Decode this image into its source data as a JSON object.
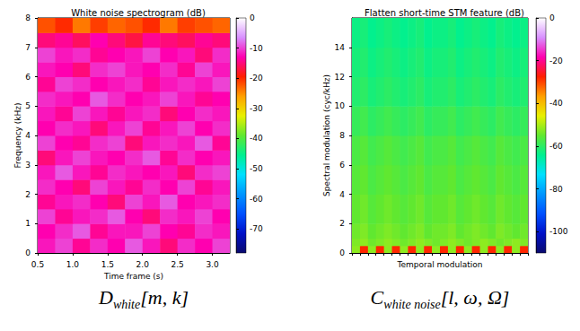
{
  "chart_data": [
    {
      "type": "heatmap",
      "title": "White noise spectrogram (dB)",
      "x_label": "Time frame (s)",
      "y_label": "Frequency (kHz)",
      "xlim": [
        0.5,
        3.25
      ],
      "xticks": [
        0.5,
        {
          "value": 1,
          "label": "1.0"
        },
        1.5,
        {
          "value": 2,
          "label": "2.0"
        },
        2.5,
        {
          "value": 3,
          "label": "3.0"
        }
      ],
      "ylim": [
        0,
        8
      ],
      "yticks": [
        0,
        1,
        2,
        3,
        4,
        5,
        6,
        7,
        8
      ],
      "x_edges": [
        0.5,
        0.75,
        1,
        1.25,
        1.5,
        1.75,
        2,
        2.25,
        2.5,
        2.75,
        3,
        3.25
      ],
      "y_edges": [
        0,
        0.5,
        1,
        1.5,
        2,
        2.5,
        3,
        3.5,
        4,
        4.5,
        5,
        5.5,
        6,
        6.5,
        7,
        7.5,
        8
      ],
      "cells": [
        [
          -12,
          -10,
          -14,
          -11,
          -13,
          -9,
          -12,
          -15,
          -11,
          -13,
          -10
        ],
        [
          -13,
          -11,
          -9,
          -14,
          -12,
          -12,
          -10,
          -13,
          -14,
          -11,
          -12
        ],
        [
          -10,
          -14,
          -12,
          -11,
          -9,
          -13,
          -15,
          -11,
          -12,
          -10,
          -13
        ],
        [
          -14,
          -12,
          -11,
          -13,
          -15,
          -10,
          -12,
          -9,
          -13,
          -12,
          -11
        ],
        [
          -11,
          -13,
          -15,
          -10,
          -12,
          -14,
          -11,
          -13,
          -10,
          -14,
          -12
        ],
        [
          -12,
          -9,
          -12,
          -14,
          -11,
          -12,
          -13,
          -12,
          -15,
          -11,
          -10
        ],
        [
          -15,
          -12,
          -10,
          -12,
          -13,
          -11,
          -9,
          -14,
          -11,
          -13,
          -12
        ],
        [
          -10,
          -13,
          -14,
          -11,
          -10,
          -15,
          -12,
          -11,
          -12,
          -9,
          -14
        ],
        [
          -13,
          -11,
          -12,
          -15,
          -12,
          -10,
          -14,
          -12,
          -10,
          -13,
          -11
        ],
        [
          -12,
          -14,
          -10,
          -12,
          -14,
          -12,
          -11,
          -15,
          -13,
          -11,
          -12
        ],
        [
          -11,
          -12,
          -13,
          -9,
          -11,
          -13,
          -12,
          -10,
          -12,
          -14,
          -13
        ],
        [
          -14,
          -10,
          -11,
          -13,
          -12,
          -11,
          -14,
          -12,
          -11,
          -12,
          -10
        ],
        [
          -12,
          -13,
          -15,
          -11,
          -10,
          -12,
          -13,
          -11,
          -14,
          -10,
          -12
        ],
        [
          -10,
          -12,
          -11,
          -14,
          -13,
          -12,
          -10,
          -13,
          -12,
          -15,
          -11
        ],
        [
          -15,
          -14,
          -16,
          -13,
          -15,
          -17,
          -14,
          -15,
          -16,
          -14,
          -15
        ],
        [
          -22,
          -20,
          -24,
          -21,
          -23,
          -22,
          -20,
          -24,
          -21,
          -22,
          -23
        ]
      ],
      "colorbar": {
        "range": [
          -78,
          0
        ],
        "ticks": [
          -70,
          -60,
          -50,
          -40,
          -30,
          -20,
          -10,
          0
        ]
      },
      "caption": {
        "symbol": "D",
        "subscript": "white",
        "arguments": "[m, k]"
      }
    },
    {
      "type": "heatmap",
      "title": "Flatten short-time STM feature (dB)",
      "x_label": "Temporal modulation",
      "y_label": "Spectral modulation (cyc/kHz)",
      "tick_labels": "y",
      "categories": [
        null,
        null,
        null,
        null,
        null,
        null,
        null,
        null,
        null,
        null,
        null,
        null,
        null,
        null,
        null,
        null,
        null,
        null,
        null,
        null,
        null,
        null
      ],
      "ylim": [
        0,
        16
      ],
      "yticks": [
        0,
        2,
        4,
        6,
        8,
        10,
        12,
        14
      ],
      "y_edges": [
        0,
        0.5,
        1,
        2,
        4,
        6,
        8,
        10,
        12,
        14,
        16
      ],
      "cells": [
        [
          -52,
          -28,
          -52,
          -28,
          -52,
          -28,
          -52,
          -28,
          -52,
          -28,
          -52,
          -28,
          -52,
          -28,
          -52,
          -28,
          -52,
          -28,
          -52,
          -28,
          -52,
          -28
        ],
        [
          -53,
          -52,
          -54,
          -53,
          -52,
          -53,
          -54,
          -53,
          -52,
          -53,
          -54,
          -53,
          -52,
          -53,
          -54,
          -53,
          -52,
          -53,
          -54,
          -53,
          -52,
          -53
        ],
        [
          -54,
          -53,
          -55,
          -54,
          -53,
          -54,
          -55,
          -54,
          -53,
          -55,
          -54,
          -54,
          -53,
          -55,
          -54,
          -53,
          -54,
          -55,
          -53,
          -54,
          -55,
          -54
        ],
        [
          -55,
          -54,
          -56,
          -55,
          -54,
          -55,
          -56,
          -55,
          -54,
          -56,
          -55,
          -55,
          -54,
          -56,
          -55,
          -54,
          -55,
          -56,
          -54,
          -55,
          -56,
          -55
        ],
        [
          -56,
          -55,
          -57,
          -56,
          -55,
          -56,
          -57,
          -56,
          -55,
          -57,
          -56,
          -56,
          -55,
          -57,
          -56,
          -55,
          -56,
          -57,
          -55,
          -56,
          -57,
          -56
        ],
        [
          -57,
          -56,
          -58,
          -57,
          -56,
          -57,
          -58,
          -57,
          -56,
          -58,
          -57,
          -57,
          -56,
          -58,
          -57,
          -56,
          -57,
          -58,
          -56,
          -57,
          -58,
          -57
        ],
        [
          -59,
          -58,
          -60,
          -59,
          -58,
          -59,
          -60,
          -59,
          -58,
          -60,
          -59,
          -59,
          -58,
          -60,
          -59,
          -58,
          -59,
          -60,
          -58,
          -59,
          -60,
          -59
        ],
        [
          -61,
          -60,
          -62,
          -61,
          -60,
          -61,
          -62,
          -61,
          -60,
          -62,
          -61,
          -61,
          -60,
          -62,
          -61,
          -60,
          -61,
          -62,
          -60,
          -61,
          -62,
          -61
        ],
        [
          -62,
          -61,
          -63,
          -62,
          -61,
          -62,
          -63,
          -62,
          -61,
          -63,
          -62,
          -62,
          -61,
          -63,
          -62,
          -61,
          -62,
          -63,
          -61,
          -62,
          -63,
          -62
        ],
        [
          -63,
          -62,
          -64,
          -63,
          -62,
          -63,
          -64,
          -63,
          -62,
          -64,
          -63,
          -63,
          -62,
          -64,
          -63,
          -62,
          -63,
          -64,
          -62,
          -63,
          -64,
          -63
        ]
      ],
      "colorbar": {
        "range": [
          -110,
          0
        ],
        "ticks": [
          -100,
          -80,
          -60,
          -40,
          -20,
          0
        ]
      },
      "caption": {
        "symbol": "C",
        "subscript": "white noise",
        "arguments": "[l, ω, Ω]"
      }
    }
  ]
}
